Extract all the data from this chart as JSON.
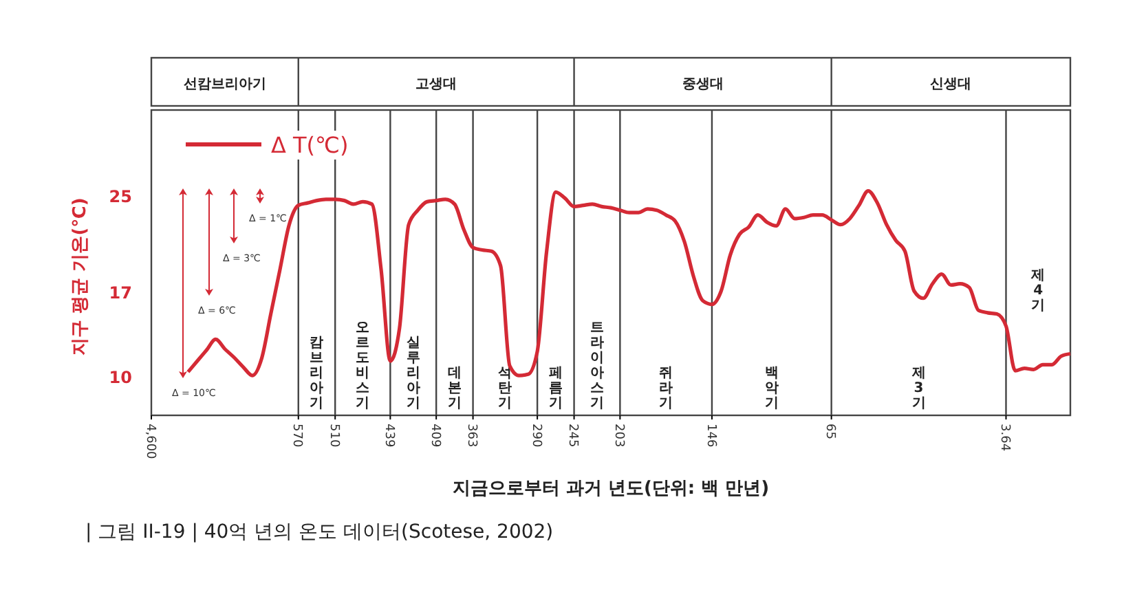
{
  "chart_data": {
    "type": "line",
    "title": "| 그림 II-19 | 40억 년의 온도 데이터(Scotese, 2002)",
    "xlabel": "지금으로부터 과거 년도(단위: 백 만년)",
    "ylabel": "지구 평균 기온(℃)",
    "categories": [
      "4,600",
      null,
      null,
      null,
      null,
      null,
      null,
      null,
      null,
      null,
      null,
      null,
      null,
      null,
      null,
      null,
      "570",
      null,
      null,
      null,
      "510",
      null,
      null,
      null,
      null,
      null,
      "439",
      null,
      null,
      null,
      null,
      "409",
      null,
      null,
      null,
      "363",
      null,
      null,
      null,
      null,
      null,
      null,
      "290",
      null,
      null,
      null,
      "245",
      null,
      null,
      null,
      null,
      "203",
      null,
      null,
      null,
      null,
      null,
      null,
      null,
      null,
      null,
      "146",
      null,
      null,
      null,
      null,
      null,
      null,
      null,
      null,
      null,
      null,
      null,
      null,
      "65",
      null,
      null,
      null,
      null,
      null,
      null,
      null,
      null,
      null,
      null,
      null,
      null,
      null,
      null,
      null,
      null,
      null,
      null,
      "3.64",
      null,
      null,
      null,
      null,
      null,
      null,
      null
    ],
    "ylim": [
      6.9,
      32.2
    ],
    "yticks": [
      10,
      17,
      25
    ],
    "legend": "top left",
    "grid": "x",
    "series": [
      {
        "name": "Δ T(℃)",
        "color": "#d42a35",
        "values": [
          null,
          null,
          null,
          null,
          10.5,
          11.4,
          12.3,
          13.2,
          12.4,
          11.7,
          10.9,
          10.2,
          11.6,
          15.3,
          19.0,
          22.7,
          24.3,
          24.5,
          24.7,
          24.8,
          24.8,
          24.7,
          24.4,
          24.6,
          24.4,
          19.0,
          11.4,
          14.1,
          22.7,
          23.9,
          24.6,
          24.7,
          24.8,
          24.4,
          22.3,
          20.8,
          20.6,
          20.5,
          19.3,
          11.0,
          10.2,
          10.3,
          12.2,
          20.4,
          25.4,
          24.9,
          24.2,
          24.3,
          24.4,
          24.2,
          24.1,
          23.9,
          23.7,
          23.7,
          24.0,
          23.9,
          23.5,
          23.0,
          21.3,
          18.4,
          16.4,
          16.1,
          17.2,
          20.2,
          21.9,
          22.5,
          23.5,
          22.9,
          22.6,
          24.0,
          23.2,
          23.3,
          23.5,
          23.5,
          23.1,
          22.7,
          23.2,
          24.3,
          25.5,
          24.5,
          22.7,
          21.4,
          20.5,
          17.2,
          16.6,
          17.8,
          18.6,
          17.7,
          17.8,
          17.5,
          15.6,
          15.4,
          15.3,
          14.3,
          10.6,
          10.8,
          10.7,
          11.1,
          11.1,
          11.8,
          12
        ]
      }
    ],
    "annotations": [
      "Δ = 10℃",
      "Δ = 6℃",
      "Δ = 3℃",
      "Δ = 1℃",
      "선캄브리아기",
      "고생대",
      "중생대",
      "신생대",
      "캄브리아기",
      "오르도비스기",
      "실루리아기",
      "데본기",
      "석탄기",
      "페름기",
      "트라이아스기",
      "쥐라기",
      "백악기",
      "제3기",
      "제4기"
    ]
  }
}
